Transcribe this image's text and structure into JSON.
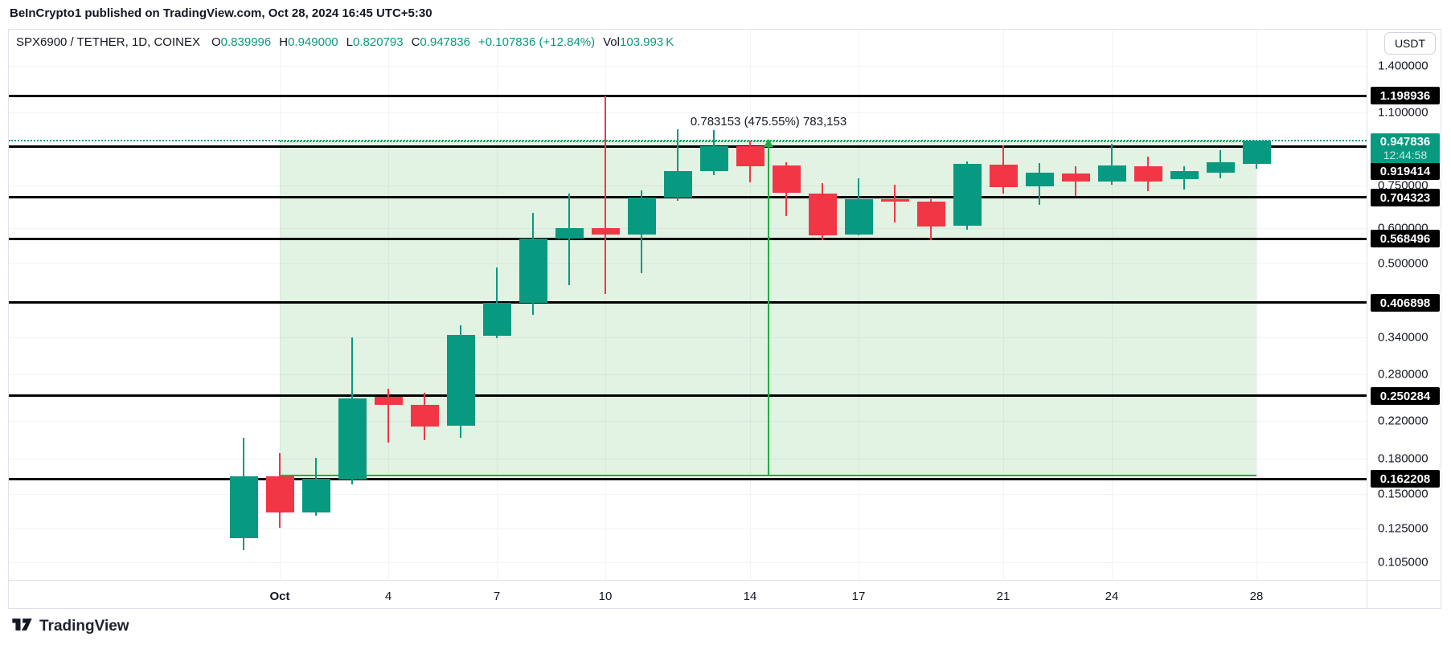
{
  "topbar": {
    "attribution": "BeInCrypto1 published on TradingView.com, Oct 28, 2024 16:45 UTC+5:30"
  },
  "legend": {
    "symbol": "SPX6900 / TETHER, 1D, COINEX",
    "fields": [
      {
        "k": "O",
        "v": "0.839996"
      },
      {
        "k": "H",
        "v": "0.949000"
      },
      {
        "k": "L",
        "v": "0.820793"
      },
      {
        "k": "C",
        "v": "0.947836"
      },
      {
        "k": "",
        "v": "+0.107836 (+12.84%)"
      },
      {
        "k": "Vol",
        "v": "103.993 K"
      }
    ]
  },
  "price_axis": {
    "currency": "USDT"
  },
  "footer": {
    "brand": "TradingView"
  },
  "colors": {
    "up": "#089981",
    "down": "#f23645",
    "level_line": "#000000",
    "range_green": "#22ab44",
    "range_fill": "rgba(76,175,80,0.16)",
    "grid": "#f0f3f8",
    "text": "#131722"
  },
  "chart_data": {
    "type": "candlestick",
    "title": "SPX6900 / TETHER, 1D, COINEX",
    "scale": "log",
    "ylim": [
      0.0958,
      1.719
    ],
    "grid": true,
    "price_ticks": [
      {
        "label": "1.400000",
        "price": 1.4
      },
      {
        "label": "1.100000",
        "price": 1.1
      },
      {
        "label": "0.750000",
        "price": 0.75
      },
      {
        "label": "0.600000",
        "price": 0.6
      },
      {
        "label": "0.500000",
        "price": 0.5
      },
      {
        "label": "0.340000",
        "price": 0.34
      },
      {
        "label": "0.280000",
        "price": 0.28
      },
      {
        "label": "0.220000",
        "price": 0.22
      },
      {
        "label": "0.180000",
        "price": 0.18
      },
      {
        "label": "0.150000",
        "price": 0.15
      },
      {
        "label": "0.125000",
        "price": 0.125
      },
      {
        "label": "0.105000",
        "price": 0.105
      }
    ],
    "time_ticks": [
      {
        "label": "Oct",
        "day": 1,
        "bold": true
      },
      {
        "label": "4",
        "day": 4
      },
      {
        "label": "7",
        "day": 7
      },
      {
        "label": "10",
        "day": 10
      },
      {
        "label": "14",
        "day": 14
      },
      {
        "label": "17",
        "day": 17
      },
      {
        "label": "21",
        "day": 21
      },
      {
        "label": "24",
        "day": 24
      },
      {
        "label": "28",
        "day": 28
      }
    ],
    "levels": [
      {
        "label": "1.198936",
        "price": 1.198936
      },
      {
        "label": "0.919414",
        "price": 0.919414,
        "badge_y": 213
      },
      {
        "label": "0.704323",
        "price": 0.704323
      },
      {
        "label": "0.568496",
        "price": 0.568496
      },
      {
        "label": "0.406898",
        "price": 0.406898
      },
      {
        "label": "0.250284",
        "price": 0.250284
      },
      {
        "label": "0.162208",
        "price": 0.162208
      }
    ],
    "last_price": {
      "label": "0.947836",
      "price": 0.947836,
      "countdown": "12:44:58"
    },
    "range_tool": {
      "label": "0.783153 (475.55%) 783,153",
      "from_day": 1,
      "to_day": 28,
      "bottom_price": 0.164683,
      "top_price": 0.947836
    },
    "candles": [
      {
        "date": "Sep 30",
        "o": 0.119,
        "h": 0.201,
        "l": 0.112,
        "c": 0.1645
      },
      {
        "date": "Oct 1",
        "o": 0.1645,
        "h": 0.186,
        "l": 0.126,
        "c": 0.136
      },
      {
        "date": "Oct 2",
        "o": 0.136,
        "h": 0.181,
        "l": 0.134,
        "c": 0.1625
      },
      {
        "date": "Oct 3",
        "o": 0.1617,
        "h": 0.34,
        "l": 0.158,
        "c": 0.2466
      },
      {
        "date": "Oct 4",
        "o": 0.2488,
        "h": 0.2594,
        "l": 0.1956,
        "c": 0.2382
      },
      {
        "date": "Oct 5",
        "o": 0.2392,
        "h": 0.2541,
        "l": 0.1981,
        "c": 0.2132
      },
      {
        "date": "Oct 6",
        "o": 0.2137,
        "h": 0.3616,
        "l": 0.2014,
        "c": 0.3434
      },
      {
        "date": "Oct 7",
        "o": 0.3434,
        "h": 0.4892,
        "l": 0.339,
        "c": 0.4072
      },
      {
        "date": "Oct 8",
        "o": 0.4072,
        "h": 0.65,
        "l": 0.3818,
        "c": 0.5687
      },
      {
        "date": "Oct 9",
        "o": 0.5687,
        "h": 0.719,
        "l": 0.4452,
        "c": 0.6
      },
      {
        "date": "Oct 10",
        "o": 0.6,
        "h": 1.1989,
        "l": 0.4261,
        "c": 0.58
      },
      {
        "date": "Oct 11",
        "o": 0.58,
        "h": 0.732,
        "l": 0.475,
        "c": 0.7043
      },
      {
        "date": "Oct 12",
        "o": 0.7043,
        "h": 1.005,
        "l": 0.693,
        "c": 0.809
      },
      {
        "date": "Oct 13",
        "o": 0.809,
        "h": 1.001,
        "l": 0.792,
        "c": 0.9194
      },
      {
        "date": "Oct 14",
        "o": 0.9194,
        "h": 0.9478,
        "l": 0.7623,
        "c": 0.8289
      },
      {
        "date": "Oct 15",
        "o": 0.8324,
        "h": 0.845,
        "l": 0.637,
        "c": 0.722
      },
      {
        "date": "Oct 16",
        "o": 0.719,
        "h": 0.7594,
        "l": 0.5639,
        "c": 0.578
      },
      {
        "date": "Oct 17",
        "o": 0.5827,
        "h": 0.7787,
        "l": 0.578,
        "c": 0.6995
      },
      {
        "date": "Oct 18",
        "o": 0.6995,
        "h": 0.7532,
        "l": 0.6183,
        "c": 0.69
      },
      {
        "date": "Oct 19",
        "o": 0.69,
        "h": 0.6995,
        "l": 0.566,
        "c": 0.6063
      },
      {
        "date": "Oct 20",
        "o": 0.6089,
        "h": 0.85,
        "l": 0.5957,
        "c": 0.8396
      },
      {
        "date": "Oct 21",
        "o": 0.8361,
        "h": 0.9234,
        "l": 0.719,
        "c": 0.7436
      },
      {
        "date": "Oct 22",
        "o": 0.7467,
        "h": 0.843,
        "l": 0.6778,
        "c": 0.8021
      },
      {
        "date": "Oct 23",
        "o": 0.7987,
        "h": 0.8289,
        "l": 0.7099,
        "c": 0.7651
      },
      {
        "date": "Oct 24",
        "o": 0.7651,
        "h": 0.9312,
        "l": 0.7532,
        "c": 0.8324
      },
      {
        "date": "Oct 25",
        "o": 0.8289,
        "h": 0.8719,
        "l": 0.7281,
        "c": 0.7651
      },
      {
        "date": "Oct 26",
        "o": 0.7757,
        "h": 0.8289,
        "l": 0.7349,
        "c": 0.809
      },
      {
        "date": "Oct 27",
        "o": 0.8021,
        "h": 0.9,
        "l": 0.7787,
        "c": 0.8467
      },
      {
        "date": "Oct 28",
        "o": 0.839996,
        "h": 0.949,
        "l": 0.820793,
        "c": 0.947836
      }
    ]
  }
}
